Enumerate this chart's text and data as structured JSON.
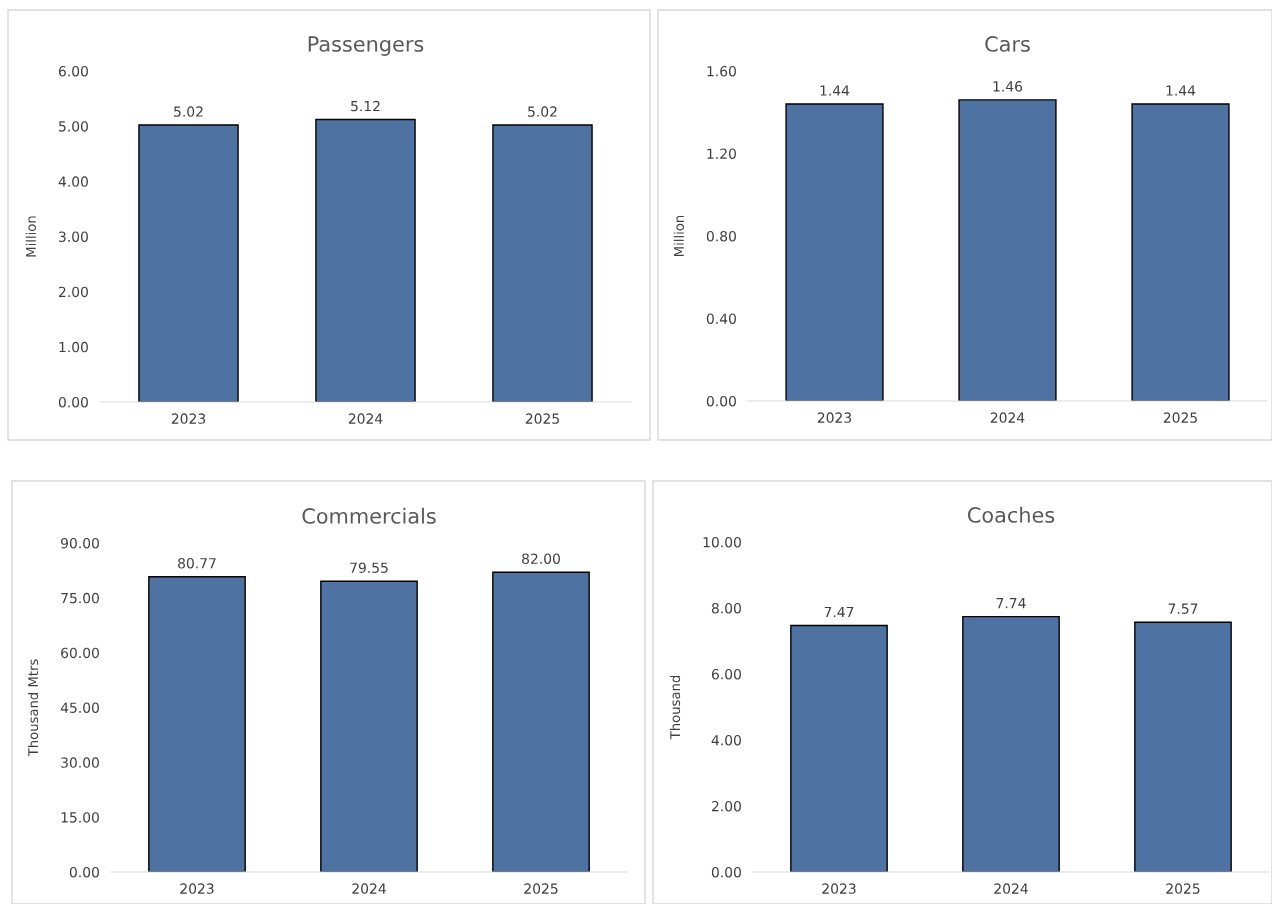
{
  "chart_data": [
    {
      "type": "bar",
      "title": "Passengers",
      "ylabel": "Million",
      "categories": [
        "2023",
        "2024",
        "2025"
      ],
      "values": [
        5.02,
        5.12,
        5.02
      ],
      "value_labels": [
        "5.02",
        "5.12",
        "5.02"
      ],
      "color": "#4e73a2",
      "ylim": [
        0,
        6
      ],
      "yticks": [
        {
          "value": 0,
          "label": "0.00"
        },
        {
          "value": 1,
          "label": "1.00"
        },
        {
          "value": 2,
          "label": "2.00"
        },
        {
          "value": 3,
          "label": "3.00"
        },
        {
          "value": 4,
          "label": "4.00"
        },
        {
          "value": 5,
          "label": "5.00"
        },
        {
          "value": 6,
          "label": "6.00"
        }
      ],
      "grid": false,
      "legend": false
    },
    {
      "type": "bar",
      "title": "Cars",
      "ylabel": "Million",
      "categories": [
        "2023",
        "2024",
        "2025"
      ],
      "values": [
        1.44,
        1.46,
        1.44
      ],
      "value_labels": [
        "1.44",
        "1.46",
        "1.44"
      ],
      "color": "#4e73a2",
      "ylim": [
        0,
        1.6
      ],
      "yticks": [
        {
          "value": 0,
          "label": "0.00"
        },
        {
          "value": 0.4,
          "label": "0.40"
        },
        {
          "value": 0.8,
          "label": "0.80"
        },
        {
          "value": 1.2,
          "label": "1.20"
        },
        {
          "value": 1.6,
          "label": "1.60"
        }
      ],
      "grid": false,
      "legend": false
    },
    {
      "type": "bar",
      "title": "Commercials",
      "ylabel": "Thousand Mtrs",
      "categories": [
        "2023",
        "2024",
        "2025"
      ],
      "values": [
        80.77,
        79.55,
        82.0
      ],
      "value_labels": [
        "80.77",
        "79.55",
        "82.00"
      ],
      "color": "#4e73a2",
      "ylim": [
        0,
        90
      ],
      "yticks": [
        {
          "value": 0,
          "label": "0.00"
        },
        {
          "value": 15,
          "label": "15.00"
        },
        {
          "value": 30,
          "label": "30.00"
        },
        {
          "value": 45,
          "label": "45.00"
        },
        {
          "value": 60,
          "label": "60.00"
        },
        {
          "value": 75,
          "label": "75.00"
        },
        {
          "value": 90,
          "label": "90.00"
        }
      ],
      "grid": false,
      "legend": false
    },
    {
      "type": "bar",
      "title": "Coaches",
      "ylabel": "Thousand",
      "categories": [
        "2023",
        "2024",
        "2025"
      ],
      "values": [
        7.47,
        7.74,
        7.57
      ],
      "value_labels": [
        "7.47",
        "7.74",
        "7.57"
      ],
      "color": "#4e73a2",
      "ylim": [
        0,
        10
      ],
      "yticks": [
        {
          "value": 0,
          "label": "0.00"
        },
        {
          "value": 2,
          "label": "2.00"
        },
        {
          "value": 4,
          "label": "4.00"
        },
        {
          "value": 6,
          "label": "6.00"
        },
        {
          "value": 8,
          "label": "8.00"
        },
        {
          "value": 10,
          "label": "10.00"
        }
      ],
      "grid": false,
      "legend": false
    }
  ]
}
